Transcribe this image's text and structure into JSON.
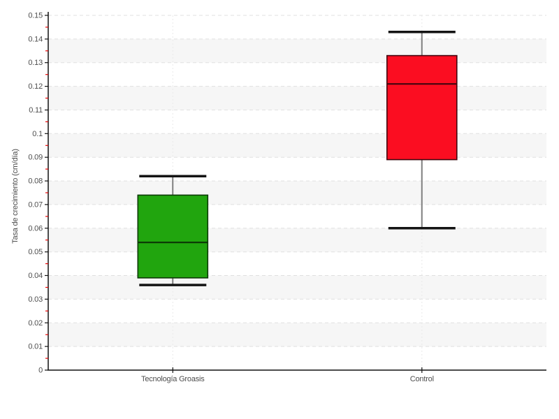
{
  "chart_data": {
    "type": "boxplot",
    "title": "",
    "xlabel": "",
    "ylabel": "Tasa de crecimiento (cm/día)",
    "ylim": [
      0,
      0.15
    ],
    "ytick_values": [
      0,
      0.01,
      0.02,
      0.03,
      0.04,
      0.05,
      0.06,
      0.07,
      0.08,
      0.09,
      0.1,
      0.11,
      0.12,
      0.13,
      0.14,
      0.15
    ],
    "ytick_labels": [
      "0",
      "0.01",
      "0.02",
      "0.03",
      "0.04",
      "0.05",
      "0.06",
      "0.07",
      "0.08",
      "0.09",
      "0.1",
      "0.11",
      "0.12",
      "0.13",
      "0.14",
      "0.15"
    ],
    "yminor_tick_step": 0.005,
    "categories": [
      "Tecnología Groasis",
      "Control"
    ],
    "series": [
      {
        "name": "Tecnología Groasis",
        "whisker_low": 0.036,
        "q1": 0.039,
        "median": 0.054,
        "q3": 0.074,
        "whisker_high": 0.082,
        "fill": "#21a50e",
        "stroke": "#0c3a05"
      },
      {
        "name": "Control",
        "whisker_low": 0.06,
        "q1": 0.089,
        "median": 0.121,
        "q3": 0.133,
        "whisker_high": 0.143,
        "fill": "#fb0d21",
        "stroke": "#42050e"
      }
    ],
    "grid": {
      "horizontal_gridlines": "dashed",
      "vertical_gridlines_at_categories": "dashed",
      "alternating_bands": true,
      "legend": "none"
    },
    "style": {
      "band_color": "#f6f6f6",
      "hgrid_color": "#e0e0e0",
      "vgrid_color": "#e9e9e9",
      "axis_color": "#111111",
      "tick_label_color": "#4d4d4d",
      "minor_tick_color": "#e60000",
      "whisker_cap_color": "#141414",
      "whisker_stem_color": "#7f7f7f",
      "background": "#ffffff"
    }
  }
}
